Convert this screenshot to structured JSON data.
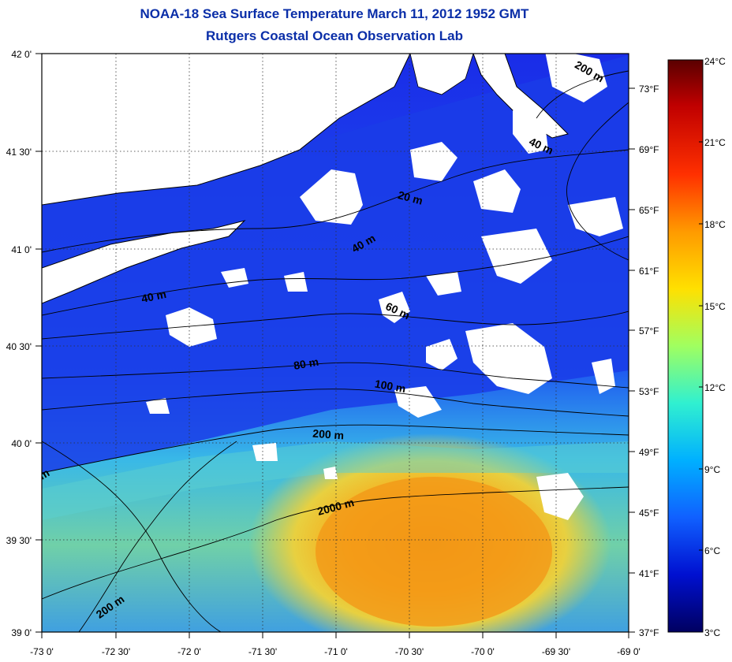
{
  "header": {
    "title": "NOAA-18 Sea Surface Temperature March 11, 2012 1952 GMT",
    "subtitle": "Rutgers Coastal Ocean Observation Lab"
  },
  "map": {
    "lat_ticks": [
      "42 0'",
      "41 30'",
      "41 0'",
      "40 30'",
      "40 0'",
      "39 30'",
      "39 0'"
    ],
    "lon_ticks": [
      "-73 0'",
      "-72 30'",
      "-72 0'",
      "-71 30'",
      "-71 0'",
      "-70 30'",
      "-70 0'",
      "-69 30'",
      "-69 0'"
    ],
    "fahrenheit_ticks": [
      "73°F",
      "69°F",
      "65°F",
      "61°F",
      "57°F",
      "53°F",
      "49°F",
      "45°F",
      "41°F",
      "37°F"
    ],
    "contour_labels": [
      "200 m",
      "40 m",
      "20 m",
      "40 m",
      "40 m",
      "60 m",
      "80 m",
      "100 m",
      "200 m",
      "2000 m",
      "200 m",
      "m"
    ]
  },
  "colorbar": {
    "ticks": [
      "24°C",
      "21°C",
      "18°C",
      "15°C",
      "12°C",
      "9°C",
      "6°C",
      "3°C"
    ],
    "colors": [
      "#5a0000",
      "#c00000",
      "#ff4000",
      "#ff9a00",
      "#ffe000",
      "#a0ff60",
      "#30f0d0",
      "#00b0ff",
      "#1060ff",
      "#0010d0",
      "#000060"
    ]
  }
}
